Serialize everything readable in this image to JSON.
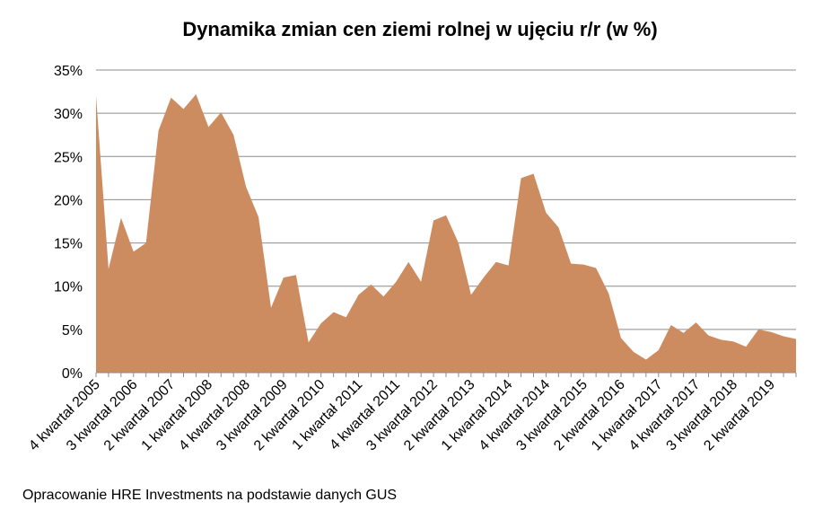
{
  "chart_data": {
    "type": "area",
    "title": "Dynamika zmian cen ziemi rolnej w ujęciu r/r (w %)",
    "source": "Opracowanie HRE Investments na podstawie danych GUS",
    "xlabel": "",
    "ylabel": "",
    "ylim": [
      0,
      35
    ],
    "y_ticks": [
      "0%",
      "5%",
      "10%",
      "15%",
      "20%",
      "25%",
      "30%",
      "35%"
    ],
    "grid": true,
    "fill_color": "#CD8B60",
    "x_tick_labels": [
      "4 kwartał 2005",
      "3 kwartał 2006",
      "2 kwartał 2007",
      "1 kwartał 2008",
      "4 kwartał 2008",
      "3 kwartał 2009",
      "2 kwartał 2010",
      "1 kwartał 2011",
      "4 kwartał 2011",
      "3 kwartał 2012",
      "2 kwartał 2013",
      "1 kwartał 2014",
      "4 kwartał 2014",
      "3 kwartał 2015",
      "2 kwartał 2016",
      "1 kwartał 2017",
      "4 kwartał 2017",
      "3 kwartał 2018",
      "2 kwartał 2019"
    ],
    "x": [
      "4 kwartał 2005",
      "1 kwartał 2006",
      "2 kwartał 2006",
      "3 kwartał 2006",
      "4 kwartał 2006",
      "1 kwartał 2007",
      "2 kwartał 2007",
      "3 kwartał 2007",
      "4 kwartał 2007",
      "1 kwartał 2008",
      "2 kwartał 2008",
      "3 kwartał 2008",
      "4 kwartał 2008",
      "1 kwartał 2009",
      "2 kwartał 2009",
      "3 kwartał 2009",
      "4 kwartał 2009",
      "1 kwartał 2010",
      "2 kwartał 2010",
      "3 kwartał 2010",
      "4 kwartał 2010",
      "1 kwartał 2011",
      "2 kwartał 2011",
      "3 kwartał 2011",
      "4 kwartał 2011",
      "1 kwartał 2012",
      "2 kwartał 2012",
      "3 kwartał 2012",
      "4 kwartał 2012",
      "1 kwartał 2013",
      "2 kwartał 2013",
      "3 kwartał 2013",
      "4 kwartał 2013",
      "1 kwartał 2014",
      "2 kwartał 2014",
      "3 kwartał 2014",
      "4 kwartał 2014",
      "1 kwartał 2015",
      "2 kwartał 2015",
      "3 kwartał 2015",
      "4 kwartał 2015",
      "1 kwartał 2016",
      "2 kwartał 2016",
      "3 kwartał 2016",
      "4 kwartał 2016",
      "1 kwartał 2017",
      "2 kwartał 2017",
      "3 kwartał 2017",
      "4 kwartał 2017",
      "1 kwartał 2018",
      "2 kwartał 2018",
      "3 kwartał 2018",
      "4 kwartał 2018",
      "1 kwartał 2019",
      "2 kwartał 2019",
      "3 kwartał 2019",
      "4 kwartał 2019"
    ],
    "values": [
      32.0,
      12.0,
      17.9,
      14.0,
      15.0,
      28.0,
      31.8,
      30.5,
      32.2,
      28.4,
      30.1,
      27.5,
      21.5,
      18.0,
      7.5,
      11.0,
      11.3,
      3.5,
      5.7,
      7.0,
      6.4,
      9.0,
      10.2,
      8.8,
      10.5,
      12.8,
      10.5,
      17.6,
      18.2,
      15.0,
      9.0,
      11.0,
      12.8,
      12.4,
      22.5,
      23.0,
      18.5,
      16.8,
      12.6,
      12.5,
      12.1,
      9.2,
      4.0,
      2.4,
      1.5,
      2.6,
      5.5,
      4.6,
      5.8,
      4.3,
      3.8,
      3.6,
      3.0,
      5.0,
      4.7,
      4.2,
      3.9
    ]
  }
}
